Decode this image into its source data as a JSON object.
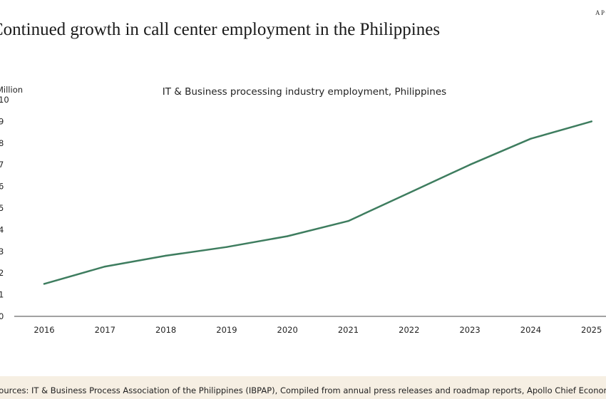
{
  "brand": "APOLLO",
  "title": "Continued growth in call center employment in the Philippines",
  "source": "Sources: IT & Business Process Association of the Philippines (IBPAP), Compiled from annual press releases and roadmap reports, Apollo Chief Economist",
  "colors": {
    "line": "#3e7d5f",
    "axis": "#444444",
    "footer_bg": "#f6efe3"
  },
  "chart_data": {
    "type": "line",
    "title": "IT & Business processing industry employment, Philippines",
    "ylabel": "Million",
    "xlabel": "",
    "categories": [
      "2016",
      "2017",
      "2018",
      "2019",
      "2020",
      "2021",
      "2022",
      "2023",
      "2024",
      "2025"
    ],
    "values": [
      1.5,
      2.3,
      2.8,
      3.2,
      3.7,
      4.4,
      5.7,
      7.0,
      8.2,
      9.0
    ],
    "yticks": [
      "0",
      "1",
      "2",
      "3",
      "4",
      "5",
      "6",
      "7",
      "8",
      "9",
      "10"
    ],
    "ylim": [
      0,
      10
    ],
    "grid": false,
    "legend": "none"
  }
}
